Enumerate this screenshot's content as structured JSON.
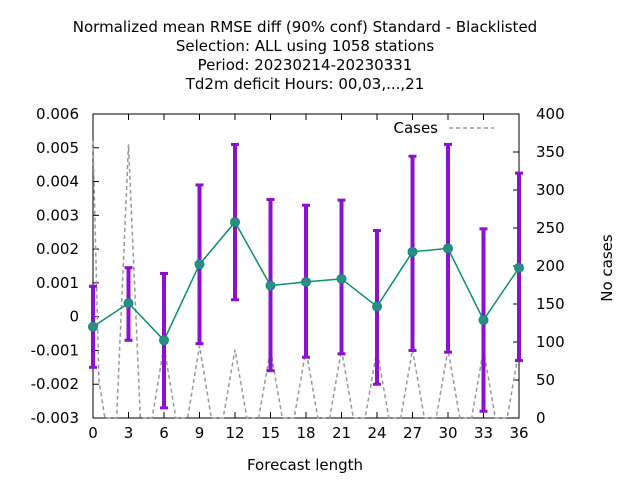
{
  "chart_data": {
    "type": "line",
    "title_lines": [
      "Normalized mean RMSE diff (90% conf) Standard - Blacklisted",
      "Selection: ALL using  1058 stations",
      "Period: 20230214-20230331",
      "Td2m deficit   Hours:  00,03,...,21"
    ],
    "xlabel": "Forecast length",
    "ylabel": "",
    "y2label": "No cases",
    "x_ticks": [
      0,
      3,
      6,
      9,
      12,
      15,
      18,
      21,
      24,
      27,
      30,
      33,
      36
    ],
    "y_ticks": [
      "0.006",
      "0.005",
      "0.004",
      "0.003",
      "0.002",
      "0.001",
      "0",
      "-0.001",
      "-0.002",
      "-0.003"
    ],
    "y2_ticks": [
      "400",
      "350",
      "300",
      "250",
      "200",
      "150",
      "100",
      "50",
      "0"
    ],
    "xlim": [
      0,
      36
    ],
    "ylim": [
      -0.003,
      0.006
    ],
    "y2lim": [
      0,
      400
    ],
    "grid": false,
    "legend_position": "top-right",
    "series": [
      {
        "name": "",
        "color": "#0a8f6e",
        "marker_color": "#2e8b8b",
        "errorbar_color": "#8b10d0",
        "x": [
          0,
          3,
          6,
          9,
          12,
          15,
          18,
          21,
          24,
          27,
          30,
          33,
          36
        ],
        "y": [
          -0.0003,
          0.0004,
          -0.0007,
          0.00155,
          0.0028,
          0.00092,
          0.00103,
          0.00112,
          0.0003,
          0.00192,
          0.00202,
          -0.0001,
          0.00145
        ],
        "err_low": [
          -0.0015,
          -0.0007,
          -0.0027,
          -0.0008,
          0.0005,
          -0.0016,
          -0.0012,
          -0.0011,
          -0.002,
          -0.001,
          -0.00105,
          -0.0028,
          -0.0013
        ],
        "err_high": [
          0.0009,
          0.00145,
          0.00128,
          0.0039,
          0.0051,
          0.00347,
          0.0033,
          0.00345,
          0.00255,
          0.00475,
          0.0051,
          0.0026,
          0.00425
        ]
      },
      {
        "name": "Cases",
        "color": "#999999",
        "dash": true,
        "axis": "y2",
        "x": [
          0,
          0.5,
          1,
          1.5,
          2,
          3,
          4,
          4.5,
          5,
          6,
          7,
          7.5,
          8,
          9,
          10,
          10.5,
          11,
          12,
          13,
          13.5,
          14,
          15,
          16,
          16.5,
          17,
          18,
          19,
          19.5,
          20,
          21,
          22,
          22.5,
          23,
          24,
          25,
          25.5,
          26,
          27,
          28,
          28.5,
          29,
          30,
          31,
          31.5,
          32,
          33,
          34,
          34.5,
          35,
          36
        ],
        "y": [
          365,
          50,
          0,
          0,
          0,
          360,
          0,
          0,
          0,
          95,
          0,
          0,
          0,
          95,
          0,
          0,
          0,
          90,
          0,
          0,
          0,
          90,
          0,
          0,
          0,
          90,
          0,
          0,
          0,
          90,
          0,
          0,
          0,
          90,
          0,
          0,
          0,
          90,
          0,
          0,
          0,
          90,
          0,
          0,
          0,
          90,
          0,
          0,
          0,
          90
        ]
      }
    ]
  }
}
